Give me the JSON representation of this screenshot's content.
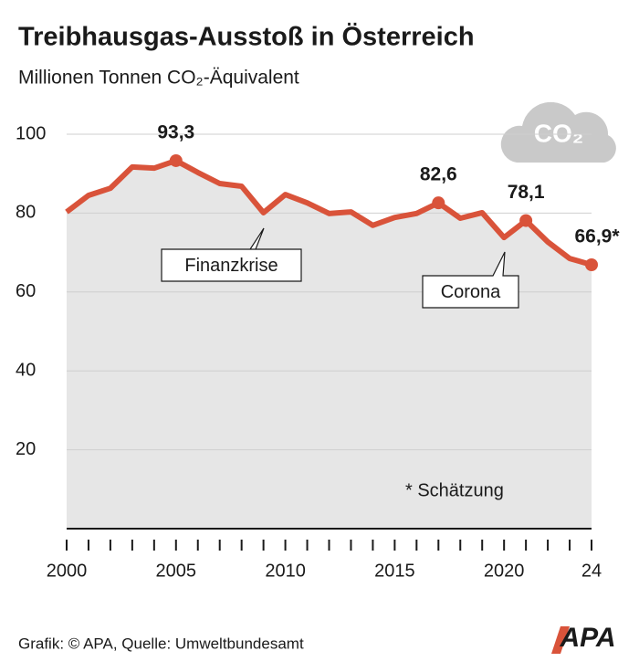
{
  "chart_data": {
    "type": "line",
    "title": "Treibhausgas-Ausstoß in Österreich",
    "subtitle": "Millionen Tonnen CO₂-Äquivalent",
    "icon_text": "CO₂",
    "x": [
      2000,
      2001,
      2002,
      2003,
      2004,
      2005,
      2006,
      2007,
      2008,
      2009,
      2010,
      2011,
      2012,
      2013,
      2014,
      2015,
      2016,
      2017,
      2018,
      2019,
      2020,
      2021,
      2022,
      2023,
      2024
    ],
    "series": [
      {
        "name": "Treibhausgas-Ausstoß",
        "color": "#d9533a",
        "values": [
          80.3,
          84.5,
          86.3,
          91.7,
          91.4,
          93.3,
          90.3,
          87.5,
          86.8,
          80.1,
          84.7,
          82.6,
          79.9,
          80.3,
          76.9,
          78.9,
          79.9,
          82.6,
          78.7,
          80.1,
          73.8,
          78.1,
          72.7,
          68.5,
          66.9
        ],
        "value_labels": [
          null,
          null,
          null,
          null,
          null,
          "93,3",
          null,
          null,
          null,
          null,
          null,
          null,
          null,
          null,
          null,
          null,
          null,
          "82,6",
          null,
          null,
          null,
          "78,1",
          null,
          null,
          "66,9*"
        ]
      }
    ],
    "xlim": [
      2000,
      2024
    ],
    "xticks": [
      2000,
      2005,
      2010,
      2015,
      2020,
      {
        "value": 2024,
        "label": "24"
      }
    ],
    "ylim": [
      0,
      100
    ],
    "yticks": [
      20,
      40,
      60,
      80,
      100
    ],
    "grid": true,
    "annotations": [
      "Finanzkrise",
      "Corona",
      "* Schätzung"
    ],
    "footer": "Grafik: © APA, Quelle: Umweltbundesamt",
    "logo": "APA"
  }
}
